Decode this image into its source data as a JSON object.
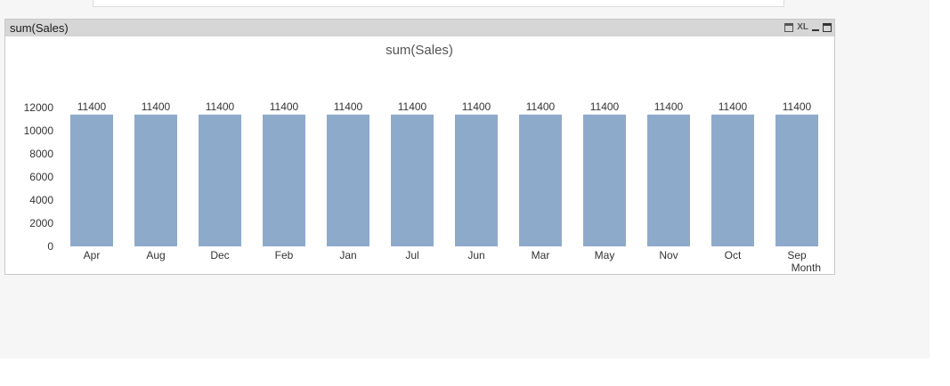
{
  "caption": {
    "title": "sum(Sales)",
    "xl_label": "XL"
  },
  "chart_data": {
    "type": "bar",
    "title": "sum(Sales)",
    "xlabel": "Month",
    "ylabel": "",
    "categories": [
      "Apr",
      "Aug",
      "Dec",
      "Feb",
      "Jan",
      "Jul",
      "Jun",
      "Mar",
      "May",
      "Nov",
      "Oct",
      "Sep"
    ],
    "values": [
      11400,
      11400,
      11400,
      11400,
      11400,
      11400,
      11400,
      11400,
      11400,
      11400,
      11400,
      11400
    ],
    "ylim": [
      0,
      12000
    ],
    "yticks": [
      0,
      2000,
      4000,
      6000,
      8000,
      10000,
      12000
    ],
    "bar_color": "#8eaacb",
    "grid": false,
    "data_labels": true
  }
}
